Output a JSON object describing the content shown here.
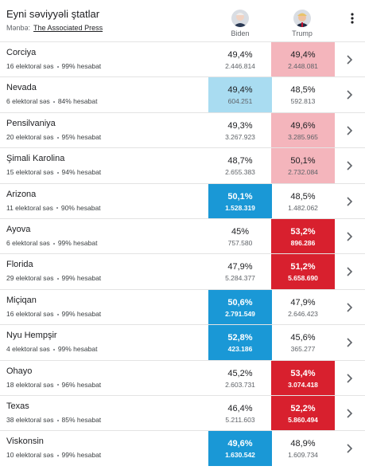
{
  "header": {
    "title": "Eyni səviyyəli ştatlar",
    "source_label": "Mənbə:",
    "source_link": "The Associated Press",
    "candidates": [
      "Biden",
      "Trump"
    ]
  },
  "table": {
    "rows": [
      {
        "state": "Corciya",
        "electoral": "16 elektoral səs",
        "reporting": "99% hesabat",
        "cells": [
          {
            "pct": "49,4%",
            "votes": "2.446.814"
          },
          {
            "pct": "49,4%",
            "votes": "2.448.081",
            "color": "#f4b5bc"
          }
        ]
      },
      {
        "state": "Nevada",
        "electoral": "6 elektoral səs",
        "reporting": "84% hesabat",
        "cells": [
          {
            "pct": "49,4%",
            "votes": "604.251",
            "color": "#a9dcf1"
          },
          {
            "pct": "48,5%",
            "votes": "592.813"
          }
        ]
      },
      {
        "state": "Pensilvaniya",
        "electoral": "20 elektoral səs",
        "reporting": "95% hesabat",
        "cells": [
          {
            "pct": "49,3%",
            "votes": "3.267.923"
          },
          {
            "pct": "49,6%",
            "votes": "3.285.965",
            "color": "#f4b5bc"
          }
        ]
      },
      {
        "state": "Şimali Karolina",
        "electoral": "15 elektoral səs",
        "reporting": "94% hesabat",
        "cells": [
          {
            "pct": "48,7%",
            "votes": "2.655.383"
          },
          {
            "pct": "50,1%",
            "votes": "2.732.084",
            "color": "#f4b5bc"
          }
        ]
      },
      {
        "state": "Arizona",
        "electoral": "11 elektoral səs",
        "reporting": "90% hesabat",
        "cells": [
          {
            "pct": "50,1%",
            "votes": "1.528.319",
            "color": "#1a98d6",
            "text_color": "#ffffff"
          },
          {
            "pct": "48,5%",
            "votes": "1.482.062"
          }
        ]
      },
      {
        "state": "Ayova",
        "electoral": "6 elektoral səs",
        "reporting": "99% hesabat",
        "cells": [
          {
            "pct": "45%",
            "votes": "757.580"
          },
          {
            "pct": "53,2%",
            "votes": "896.286",
            "color": "#d8202e",
            "text_color": "#ffffff"
          }
        ]
      },
      {
        "state": "Florida",
        "electoral": "29 elektoral səs",
        "reporting": "99% hesabat",
        "cells": [
          {
            "pct": "47,9%",
            "votes": "5.284.377"
          },
          {
            "pct": "51,2%",
            "votes": "5.658.690",
            "color": "#d8202e",
            "text_color": "#ffffff"
          }
        ]
      },
      {
        "state": "Miçiqan",
        "electoral": "16 elektoral səs",
        "reporting": "99% hesabat",
        "cells": [
          {
            "pct": "50,6%",
            "votes": "2.791.549",
            "color": "#1a98d6",
            "text_color": "#ffffff"
          },
          {
            "pct": "47,9%",
            "votes": "2.646.423"
          }
        ]
      },
      {
        "state": "Nyu Hempşir",
        "electoral": "4 elektoral səs",
        "reporting": "99% hesabat",
        "cells": [
          {
            "pct": "52,8%",
            "votes": "423.186",
            "color": "#1a98d6",
            "text_color": "#ffffff"
          },
          {
            "pct": "45,6%",
            "votes": "365.277"
          }
        ]
      },
      {
        "state": "Ohayo",
        "electoral": "18 elektoral səs",
        "reporting": "96% hesabat",
        "cells": [
          {
            "pct": "45,2%",
            "votes": "2.603.731"
          },
          {
            "pct": "53,4%",
            "votes": "3.074.418",
            "color": "#d8202e",
            "text_color": "#ffffff"
          }
        ]
      },
      {
        "state": "Texas",
        "electoral": "38 elektoral səs",
        "reporting": "85% hesabat",
        "cells": [
          {
            "pct": "46,4%",
            "votes": "5.211.603"
          },
          {
            "pct": "52,2%",
            "votes": "5.860.494",
            "color": "#d8202e",
            "text_color": "#ffffff"
          }
        ]
      },
      {
        "state": "Viskonsin",
        "electoral": "10 elektoral səs",
        "reporting": "99% hesabat",
        "cells": [
          {
            "pct": "49,6%",
            "votes": "1.630.542",
            "color": "#1a98d6",
            "text_color": "#ffffff"
          },
          {
            "pct": "48,9%",
            "votes": "1.609.734"
          }
        ]
      }
    ]
  }
}
